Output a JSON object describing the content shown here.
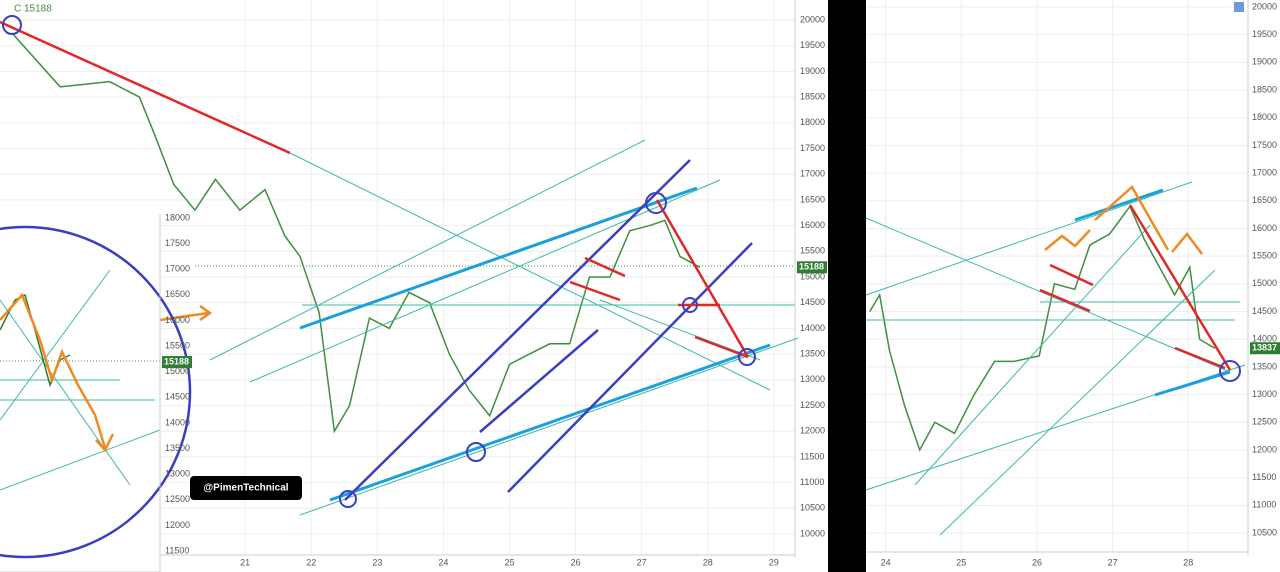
{
  "chart_data": [
    {
      "type": "line",
      "header_label": "C 15188",
      "watermark": "@PimenTechnical",
      "x": [
        17.47,
        18.2,
        18.95,
        19.4,
        19.62,
        19.92,
        20.24,
        20.55,
        20.92,
        21.3,
        21.6,
        21.83,
        22.12,
        22.35,
        22.58,
        22.88,
        23.18,
        23.48,
        23.79,
        24.09,
        24.39,
        24.7,
        25.0,
        25.3,
        25.61,
        25.91,
        26.21,
        26.52,
        26.82,
        27.12,
        27.35,
        27.58,
        27.88
      ],
      "values": [
        19750,
        18700,
        18800,
        18500,
        17800,
        16800,
        16300,
        16900,
        16300,
        16700,
        15800,
        15400,
        14300,
        12000,
        12500,
        14200,
        14000,
        14700,
        14500,
        13500,
        12800,
        12300,
        13300,
        13500,
        13700,
        13700,
        15000,
        15000,
        15900,
        16000,
        16100,
        15400,
        15188
      ],
      "color": "#3f8f3f",
      "last_value_label": 15188,
      "grid": true,
      "xlim": [
        17.29,
        29.32
      ],
      "xticks": [
        21,
        22,
        23,
        24,
        25,
        26,
        27,
        28,
        29
      ],
      "ylim": [
        9591,
        20389
      ],
      "yticks": [
        10000,
        10500,
        11000,
        11500,
        12000,
        12500,
        13000,
        13500,
        14000,
        14500,
        15000,
        15500,
        16000,
        16500,
        17000,
        17500,
        18000,
        18500,
        19000,
        19500,
        20000
      ]
    },
    {
      "type": "line",
      "x": [
        23.79,
        23.92,
        24.05,
        24.25,
        24.45,
        24.65,
        24.91,
        25.17,
        25.44,
        25.7,
        26.03,
        26.23,
        26.5,
        26.7,
        26.96,
        27.23,
        27.42,
        27.62,
        27.82,
        28.02,
        28.15,
        28.35
      ],
      "values": [
        14500,
        14800,
        13800,
        12800,
        12000,
        12500,
        12300,
        13000,
        13600,
        13600,
        13700,
        15000,
        14900,
        15700,
        15900,
        16400,
        15800,
        15300,
        14800,
        15300,
        14000,
        13837
      ],
      "color": "#3f8f3f",
      "last_value_label": 13837,
      "grid": true,
      "xlim": [
        23.74,
        28.79
      ],
      "xticks": [
        24,
        25,
        26,
        27,
        28
      ],
      "ylim": [
        10157,
        20126
      ],
      "yticks": [
        10500,
        11000,
        11500,
        12000,
        12500,
        13000,
        13500,
        14000,
        14500,
        15000,
        15500,
        16000,
        16500,
        17000,
        17500,
        18000,
        18500,
        19000,
        19500,
        20000
      ]
    },
    {
      "type": "inset",
      "last_value_label": 15188,
      "grid": false,
      "ylim": [
        11090,
        18078
      ],
      "yticks": [
        11500,
        12000,
        12500,
        13000,
        13500,
        14000,
        14500,
        15000,
        15500,
        16000,
        16500,
        17000,
        17500,
        18000
      ]
    }
  ]
}
